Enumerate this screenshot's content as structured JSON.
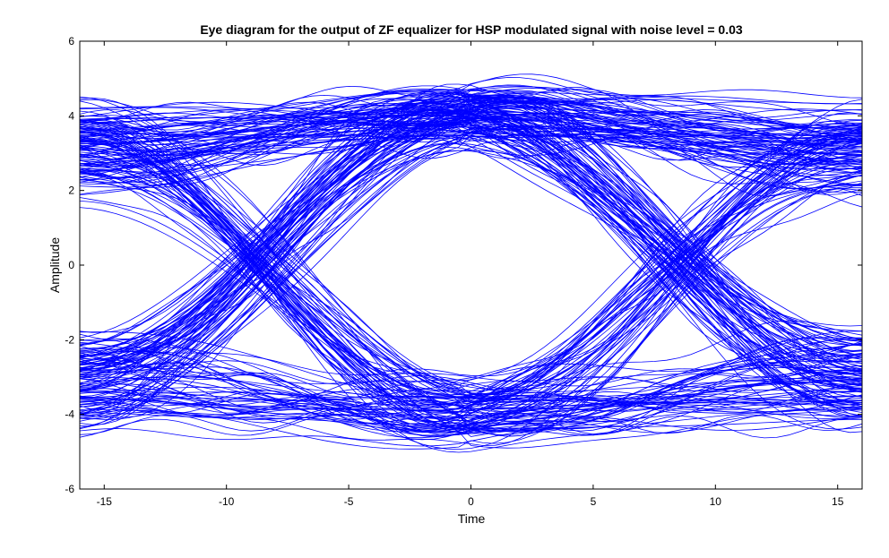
{
  "chart_data": {
    "type": "line",
    "title": "Eye diagram for the output of ZF equalizer for HSP modulated signal with noise level = 0.03",
    "xlabel": "Time",
    "ylabel": "Amplitude",
    "xlim": [
      -16,
      16
    ],
    "ylim": [
      -6,
      6
    ],
    "xticks": [
      -15,
      -10,
      -5,
      0,
      5,
      10,
      15
    ],
    "xtick_labels": [
      "-15",
      "-10",
      "-5",
      "0",
      "5",
      "10",
      "15"
    ],
    "yticks": [
      -6,
      -4,
      -2,
      0,
      2,
      4,
      6
    ],
    "ytick_labels": [
      "-6",
      "-4",
      "-2",
      "0",
      "2",
      "4",
      "6"
    ],
    "grid": false,
    "line_color": "#0000ff",
    "symbol_period": 32,
    "signal_levels": [
      -4,
      4
    ],
    "upper_envelope": {
      "x": [
        -16,
        -12,
        -8,
        -4,
        0,
        4,
        8,
        12,
        16
      ],
      "y_min": [
        -2.0,
        -0.5,
        1.5,
        2.7,
        2.8,
        2.7,
        1.5,
        -0.5,
        -2.0
      ],
      "y_max": [
        4.0,
        4.3,
        4.8,
        5.3,
        5.5,
        5.3,
        4.8,
        4.3,
        4.0
      ]
    },
    "lower_envelope": {
      "x": [
        -16,
        -12,
        -8,
        -4,
        0,
        4,
        8,
        12,
        16
      ],
      "y_min": [
        -4.0,
        -4.3,
        -4.8,
        -5.3,
        -5.4,
        -5.3,
        -4.8,
        -4.3,
        -4.0
      ],
      "y_max": [
        2.0,
        0.5,
        -1.5,
        -2.6,
        -2.7,
        -2.6,
        -1.5,
        0.5,
        2.0
      ]
    }
  }
}
